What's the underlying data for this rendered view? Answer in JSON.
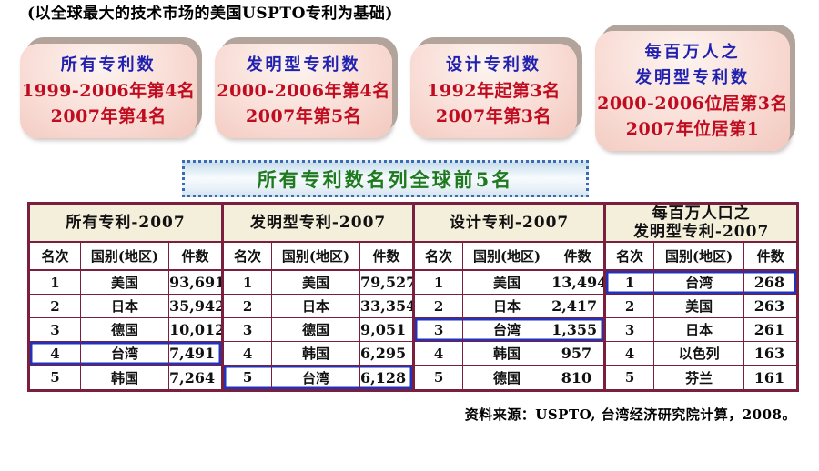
{
  "page": {
    "top_note": "(以全球最大的技术市场的美国USPTO专利为基础)",
    "source_note": "资料来源：USPTO, 台湾经济研究院计算，2008。"
  },
  "badges": [
    {
      "name": "all-patents",
      "lines": [
        {
          "text": "所有专利数",
          "tone": "blue"
        },
        {
          "text": "1999-2006年第4名",
          "tone": "red"
        },
        {
          "text": "2007年第4名",
          "tone": "red"
        }
      ]
    },
    {
      "name": "invention-patents",
      "lines": [
        {
          "text": "发明型专利数",
          "tone": "blue"
        },
        {
          "text": "2000-2006年第4名",
          "tone": "red"
        },
        {
          "text": "2007年第5名",
          "tone": "red"
        }
      ]
    },
    {
      "name": "design-patents",
      "lines": [
        {
          "text": "设计专利数",
          "tone": "blue"
        },
        {
          "text": "1992年起第3名",
          "tone": "red"
        },
        {
          "text": "2007年第3名",
          "tone": "red"
        }
      ]
    },
    {
      "name": "invention-per-million",
      "lines": [
        {
          "text": "每百万人之",
          "tone": "blue"
        },
        {
          "text": "发明型专利数",
          "tone": "blue"
        },
        {
          "text": "2000-2006位居第3名",
          "tone": "red"
        },
        {
          "text": "2007年位居第1",
          "tone": "red"
        }
      ]
    }
  ],
  "banner": {
    "text": "所有专利数名列全球前5名"
  },
  "table": {
    "column_headers": [
      "名次",
      "国别(地区)",
      "件数"
    ],
    "groups": [
      {
        "title": "所有专利-2007",
        "highlight_rank": 4,
        "rows": [
          [
            "1",
            "美国",
            "93,691"
          ],
          [
            "2",
            "日本",
            "35,942"
          ],
          [
            "3",
            "德国",
            "10,012"
          ],
          [
            "4",
            "台湾",
            "7,491"
          ],
          [
            "5",
            "韩国",
            "7,264"
          ]
        ]
      },
      {
        "title": "发明型专利-2007",
        "highlight_rank": 5,
        "rows": [
          [
            "1",
            "美国",
            "79,527"
          ],
          [
            "2",
            "日本",
            "33,354"
          ],
          [
            "3",
            "德国",
            "9,051"
          ],
          [
            "4",
            "韩国",
            "6,295"
          ],
          [
            "5",
            "台湾",
            "6,128"
          ]
        ]
      },
      {
        "title": "设计专利-2007",
        "highlight_rank": 3,
        "rows": [
          [
            "1",
            "美国",
            "13,494"
          ],
          [
            "2",
            "日本",
            "2,417"
          ],
          [
            "3",
            "台湾",
            "1,355"
          ],
          [
            "4",
            "韩国",
            "957"
          ],
          [
            "5",
            "德国",
            "810"
          ]
        ]
      },
      {
        "title": "每百万人口之\n发明型专利-2007",
        "highlight_rank": 1,
        "rows": [
          [
            "1",
            "台湾",
            "268"
          ],
          [
            "2",
            "美国",
            "263"
          ],
          [
            "3",
            "日本",
            "261"
          ],
          [
            "4",
            "以色列",
            "163"
          ],
          [
            "5",
            "芬兰",
            "161"
          ]
        ]
      }
    ]
  },
  "colors": {
    "maroon": "#7b1f3e",
    "header-bg": "#f4efda",
    "hl-blue": "#2233bb",
    "badge-blue": "#2121b0",
    "badge-red": "#c00c20",
    "banner-green": "#1e7a1e",
    "banner-border": "#3a6bb0"
  }
}
